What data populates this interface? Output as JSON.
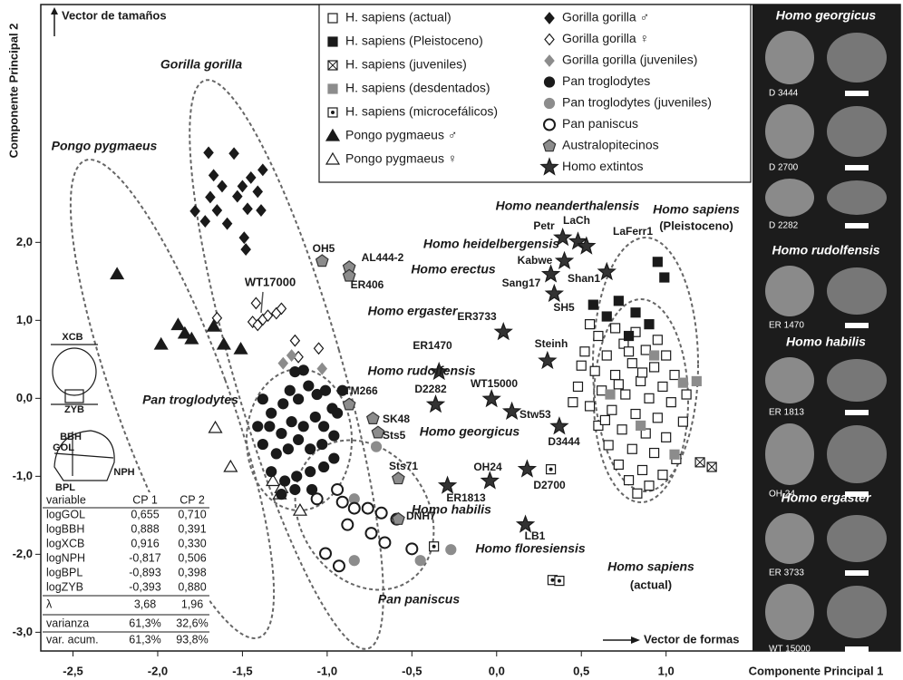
{
  "chart_data": {
    "type": "scatter",
    "x_label": "Componente Principal 1",
    "y_label": "Componente Principal 2",
    "xlim": [
      -2.69,
      1.51
    ],
    "ylim": [
      -3.24,
      5.05
    ],
    "xticks": [
      {
        "value": -2.5,
        "label": "-2,5"
      },
      {
        "value": -2,
        "label": "-2,0"
      },
      {
        "value": -1.5,
        "label": "-1,5"
      },
      {
        "value": -1,
        "label": "-1,0"
      },
      {
        "value": -0.5,
        "label": "-0,5"
      },
      {
        "value": 0,
        "label": "0,0"
      },
      {
        "value": 0.5,
        "label": "0,5"
      },
      {
        "value": 1,
        "label": "1,0"
      }
    ],
    "yticks": [
      {
        "value": -3,
        "label": "-3,0"
      },
      {
        "value": -2,
        "label": "-2,0"
      },
      {
        "value": -1,
        "label": "-1,0"
      },
      {
        "value": 0,
        "label": "0,0"
      },
      {
        "value": 1,
        "label": "1,0"
      },
      {
        "value": 2,
        "label": "2,0"
      }
    ],
    "legend": "top",
    "annotations": [
      "Vector de tamaños",
      "Gorilla gorilla",
      "Pongo pygmaeus",
      "Pan troglodytes",
      "Pan paniscus",
      "Homo sapiens",
      "(actual)",
      "Homo sapiens",
      "(Pleistoceno)",
      "Homo neanderthalensis",
      "Homo heidelbergensis",
      "Homo erectus",
      "Homo ergaster",
      "Homo rudolfensis",
      "Homo georgicus",
      "Homo habilis",
      "Homo floresiensis",
      "WT17000",
      "Vector de formas"
    ],
    "series": [
      {
        "name": "H. sapiens (actual)",
        "marker": "square",
        "color": "#1a1a1a",
        "fill": "#ffffff",
        "x": [
          0.55,
          0.7,
          0.82,
          0.95,
          0.6,
          0.75,
          0.88,
          1.0,
          0.52,
          0.65,
          0.8,
          0.93,
          1.05,
          0.58,
          0.7,
          0.85,
          0.98,
          0.48,
          0.62,
          0.76,
          0.9,
          1.03,
          0.55,
          0.68,
          0.82,
          0.95,
          1.1,
          0.6,
          0.74,
          0.88,
          1.0,
          0.66,
          0.8,
          0.93,
          1.06,
          0.72,
          0.86,
          0.98,
          0.78,
          0.9,
          0.83,
          0.45,
          0.72,
          0.86,
          0.64,
          0.78,
          1.12,
          0.5
        ],
        "y": [
          0.95,
          0.9,
          0.85,
          0.75,
          0.8,
          0.7,
          0.62,
          0.55,
          0.6,
          0.55,
          0.45,
          0.4,
          0.3,
          0.35,
          0.3,
          0.22,
          0.15,
          0.15,
          0.1,
          0.05,
          0.0,
          -0.05,
          -0.1,
          -0.15,
          -0.2,
          -0.25,
          -0.3,
          -0.35,
          -0.4,
          -0.45,
          -0.5,
          -0.6,
          -0.65,
          -0.7,
          -0.78,
          -0.85,
          -0.92,
          -0.98,
          -1.05,
          -1.12,
          -1.22,
          -0.05,
          0.18,
          0.33,
          -0.28,
          0.6,
          0.05,
          0.42
        ]
      },
      {
        "name": "H. sapiens (Pleistoceno)",
        "marker": "square",
        "color": "#1a1a1a",
        "fill": "#1a1a1a",
        "x": [
          0.95,
          0.99,
          0.72,
          0.82,
          0.65,
          0.9,
          0.78,
          0.57
        ],
        "y": [
          1.75,
          1.55,
          1.25,
          1.1,
          1.05,
          0.95,
          0.8,
          1.2
        ]
      },
      {
        "name": "H. sapiens (juveniles)",
        "marker": "square-x",
        "color": "#1a1a1a",
        "fill": "#ffffff",
        "x": [
          1.2,
          1.27
        ],
        "y": [
          -0.82,
          -0.88
        ]
      },
      {
        "name": "H. sapiens (desdentados)",
        "marker": "square",
        "color": "#8c8c8c",
        "fill": "#8c8c8c",
        "x": [
          1.1,
          1.18,
          0.67,
          0.85,
          1.05,
          0.93
        ],
        "y": [
          0.2,
          0.22,
          0.05,
          -0.35,
          -0.72,
          0.55
        ]
      },
      {
        "name": "H. sapiens (microcefálicos)",
        "marker": "square-dot",
        "color": "#1a1a1a",
        "fill": "#ffffff",
        "x": [
          0.32,
          -0.37,
          0.33,
          0.37
        ],
        "y": [
          -0.91,
          -1.9,
          -2.33,
          -2.34
        ]
      },
      {
        "name": "Pongo pygmaeus ♂",
        "marker": "triangle",
        "color": "#1a1a1a",
        "fill": "#1a1a1a",
        "x": [
          -2.24,
          -1.88,
          -1.84,
          -1.98,
          -1.8,
          -1.67,
          -1.61,
          -1.51
        ],
        "y": [
          1.59,
          0.94,
          0.83,
          0.69,
          0.76,
          0.92,
          0.69,
          0.63
        ]
      },
      {
        "name": "Pongo pygmaeus ♀",
        "marker": "triangle",
        "color": "#1a1a1a",
        "fill": "#ffffff",
        "x": [
          -1.66,
          -1.57,
          -1.32,
          -1.28,
          -1.16,
          -1.27
        ],
        "y": [
          -0.38,
          -0.88,
          -1.06,
          -1.23,
          -1.44,
          -1.15
        ]
      },
      {
        "name": "Gorilla gorilla ♂",
        "marker": "diamond",
        "color": "#1a1a1a",
        "fill": "#1a1a1a",
        "x": [
          -1.7,
          -1.55,
          -1.38,
          -1.67,
          -1.45,
          -1.62,
          -1.5,
          -1.69,
          -1.53,
          -1.41,
          -1.78,
          -1.65,
          -1.47,
          -1.39,
          -1.72,
          -1.59,
          -1.49,
          -1.48
        ],
        "y": [
          3.15,
          3.14,
          2.93,
          2.86,
          2.83,
          2.72,
          2.72,
          2.58,
          2.59,
          2.65,
          2.4,
          2.41,
          2.43,
          2.41,
          2.27,
          2.24,
          2.06,
          1.91
        ]
      },
      {
        "name": "Gorilla gorilla ♀",
        "marker": "diamond",
        "color": "#1a1a1a",
        "fill": "#ffffff",
        "x": [
          -1.65,
          -1.42,
          -1.44,
          -1.41,
          -1.38,
          -1.35,
          -1.3,
          -1.27,
          -1.19,
          -1.05,
          -1.17
        ],
        "y": [
          1.03,
          1.22,
          0.98,
          0.94,
          1.01,
          1.06,
          1.09,
          1.15,
          0.74,
          0.64,
          0.53
        ]
      },
      {
        "name": "Gorilla gorilla (juveniles)",
        "marker": "diamond",
        "color": "#8c8c8c",
        "fill": "#8c8c8c",
        "x": [
          -1.26,
          -1.03,
          -1.21
        ],
        "y": [
          0.45,
          0.38,
          0.55
        ]
      },
      {
        "name": "Pan troglodytes",
        "marker": "circle",
        "color": "#1a1a1a",
        "fill": "#1a1a1a",
        "x": [
          -1.38,
          -1.33,
          -1.26,
          -1.22,
          -1.17,
          -1.11,
          -1.06,
          -1.01,
          -1.34,
          -1.27,
          -1.21,
          -1.14,
          -1.07,
          -1.02,
          -0.97,
          -1.38,
          -1.3,
          -1.23,
          -1.17,
          -1.1,
          -1.03,
          -0.96,
          -1.33,
          -1.25,
          -1.18,
          -1.1,
          -1.02,
          -0.96,
          -1.27,
          -1.19,
          -1.09,
          -0.94,
          -1.41,
          -0.91,
          -1.19,
          -1.14
        ],
        "y": [
          -0.01,
          -0.19,
          -0.07,
          0.1,
          -0.01,
          0.16,
          0.05,
          0.1,
          -0.36,
          -0.45,
          -0.3,
          -0.36,
          -0.24,
          -0.36,
          -0.13,
          -0.59,
          -0.71,
          -0.65,
          -0.53,
          -0.65,
          -0.59,
          -0.48,
          -0.94,
          -1.06,
          -1.0,
          -0.94,
          -0.88,
          -0.77,
          -1.23,
          -1.17,
          -1.17,
          -0.19,
          -0.36,
          0.1,
          0.34,
          0.36
        ]
      },
      {
        "name": "Pan troglodytes (juveniles)",
        "marker": "circle",
        "color": "#8c8c8c",
        "fill": "#8c8c8c",
        "x": [
          -0.84,
          -0.71,
          -0.84,
          -0.45,
          -0.27
        ],
        "y": [
          -1.29,
          -0.62,
          -2.08,
          -2.08,
          -1.94
        ]
      },
      {
        "name": "Pan paniscus",
        "marker": "circle",
        "color": "#1a1a1a",
        "fill": "#ffffff",
        "x": [
          -1.06,
          -0.91,
          -0.76,
          -0.68,
          -0.59,
          -0.88,
          -0.74,
          -1.01,
          -0.93,
          -0.66,
          -0.5,
          -0.84,
          -0.94
        ],
        "y": [
          -1.29,
          -1.33,
          -1.41,
          -1.47,
          -1.55,
          -1.62,
          -1.73,
          -1.99,
          -2.15,
          -1.85,
          -1.93,
          -1.41,
          -1.17
        ]
      },
      {
        "name": "Australopitecinos",
        "marker": "pentagon",
        "color": "#333333",
        "fill": "#8c8c8c",
        "labels": [
          "OH5",
          "AL444-2",
          "ER406",
          "TM266",
          "SK48",
          "Sts5",
          "Sts71",
          "DNH7"
        ],
        "x": [
          -1.03,
          -0.87,
          -0.87,
          -0.87,
          -0.73,
          -0.7,
          -0.58,
          -0.58
        ],
        "y": [
          1.76,
          1.68,
          1.57,
          -0.08,
          -0.26,
          -0.44,
          -1.03,
          -1.55
        ]
      },
      {
        "name": "Homo extintos",
        "marker": "star",
        "color": "#1a1a1a",
        "fill": "#333333",
        "labels": [
          "Petr",
          "LaCh",
          "LaFerr1",
          "Kabwe",
          "Sang17",
          "Shan1",
          "SH5",
          "ER3733",
          "Steinh",
          "ER1470",
          "WT15000",
          "D2282",
          "Stw53",
          "D3444",
          "OH24",
          "D2700",
          "ER1813",
          "LB1"
        ],
        "x": [
          0.39,
          0.48,
          0.53,
          0.4,
          0.32,
          0.65,
          0.34,
          0.04,
          0.3,
          -0.34,
          -0.03,
          -0.36,
          0.09,
          0.37,
          -0.04,
          0.18,
          -0.29,
          0.17
        ],
        "y": [
          2.06,
          2.01,
          1.95,
          1.76,
          1.59,
          1.62,
          1.34,
          0.85,
          0.48,
          0.34,
          -0.01,
          -0.08,
          -0.17,
          -0.36,
          -1.06,
          -0.91,
          -1.12,
          -1.62
        ]
      }
    ]
  },
  "skull_labels": [
    "XCB",
    "ZYB",
    "BBH",
    "GOL",
    "NPH",
    "BPL"
  ],
  "table": {
    "header": [
      "variable",
      "CP 1",
      "CP 2"
    ],
    "rows": [
      [
        "logGOL",
        "0,655",
        "0,710"
      ],
      [
        "logBBH",
        "0,888",
        "0,391"
      ],
      [
        "logXCB",
        "0,916",
        "0,330"
      ],
      [
        "logNPH",
        "-0,817",
        "0,506"
      ],
      [
        "logBPL",
        "-0,893",
        "0,398"
      ],
      [
        "logZYB",
        "-0,393",
        "0,880"
      ],
      [
        "λ",
        "3,68",
        "1,96"
      ],
      [
        "varianza",
        "61,3%",
        "32,6%"
      ],
      [
        "var. acum.",
        "61,3%",
        "93,8%"
      ]
    ]
  },
  "photo_panel": [
    {
      "title": "Homo georgicus",
      "specimens": [
        "D 3444",
        "D 2700",
        "D 2282"
      ]
    },
    {
      "title": "Homo rudolfensis",
      "specimens": [
        "ER 1470"
      ]
    },
    {
      "title": "Homo habilis",
      "specimens": [
        "ER 1813",
        "OH 24"
      ]
    },
    {
      "title": "Homo ergaster",
      "specimens": [
        "ER 3733",
        "WT 15000"
      ]
    }
  ]
}
